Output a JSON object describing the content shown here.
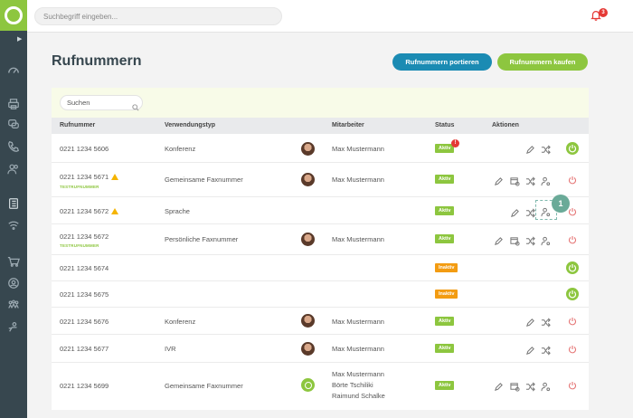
{
  "topbar": {
    "search_placeholder": "Suchbegriff eingeben...",
    "notification_count": "3"
  },
  "page": {
    "title": "Rufnummern",
    "btn_port": "Rufnummern portieren",
    "btn_buy": "Rufnummern kaufen"
  },
  "table": {
    "search_placeholder": "Suchen",
    "headers": {
      "number": "Rufnummer",
      "type": "Verwendungstyp",
      "employee": "Mitarbeiter",
      "status": "Status",
      "actions": "Aktionen"
    },
    "test_tag": "TESTRUFNUMMER",
    "rows": [
      {
        "number": "0221 1234 5606",
        "type": "Konferenz",
        "employee": "Max Mustermann",
        "status": "Aktiv",
        "alert": "!"
      },
      {
        "number": "0221 1234 5671",
        "type": "Gemeinsame Faxnummer",
        "employee": "Max Mustermann",
        "status": "Aktiv"
      },
      {
        "number": "0221 1234 5672",
        "type": "Sprache",
        "employee": "",
        "status": "Aktiv"
      },
      {
        "number": "0221 1234 5672",
        "type": "Persönliche Faxnummer",
        "employee": "Max Mustermann",
        "status": "Aktiv"
      },
      {
        "number": "0221 1234 5674",
        "type": "",
        "employee": "",
        "status": "Inaktiv"
      },
      {
        "number": "0221 1234 5675",
        "type": "",
        "employee": "",
        "status": "Inaktiv"
      },
      {
        "number": "0221 1234 5676",
        "type": "Konferenz",
        "employee": "Max Mustermann",
        "status": "Aktiv"
      },
      {
        "number": "0221 1234 5677",
        "type": "IVR",
        "employee": "Max Mustermann",
        "status": "Aktiv"
      },
      {
        "number": "0221 1234 5699",
        "type": "Gemeinsame Faxnummer",
        "employee_lines": [
          "Max Mustermann",
          "Börte Tschiliki",
          "Raimund Schalke"
        ],
        "status": "Aktiv"
      }
    ]
  },
  "callout": {
    "step": "1"
  },
  "colors": {
    "brand_green": "#8dc63f",
    "brand_blue": "#1b8bb3",
    "sidebar": "#37474f",
    "inactive": "#f39c12",
    "alert": "#e53935"
  },
  "icons": [
    "dashboard-icon",
    "printer-icon",
    "chat-icon",
    "phone-icon",
    "users-icon",
    "phone-list-icon",
    "wifi-icon",
    "cart-icon",
    "user-circle-icon",
    "team-icon",
    "agent-icon",
    "edit-icon",
    "calendar-clock-icon",
    "shuffle-icon",
    "user-settings-icon",
    "power-icon",
    "bell-icon",
    "search-icon",
    "warning-icon"
  ]
}
